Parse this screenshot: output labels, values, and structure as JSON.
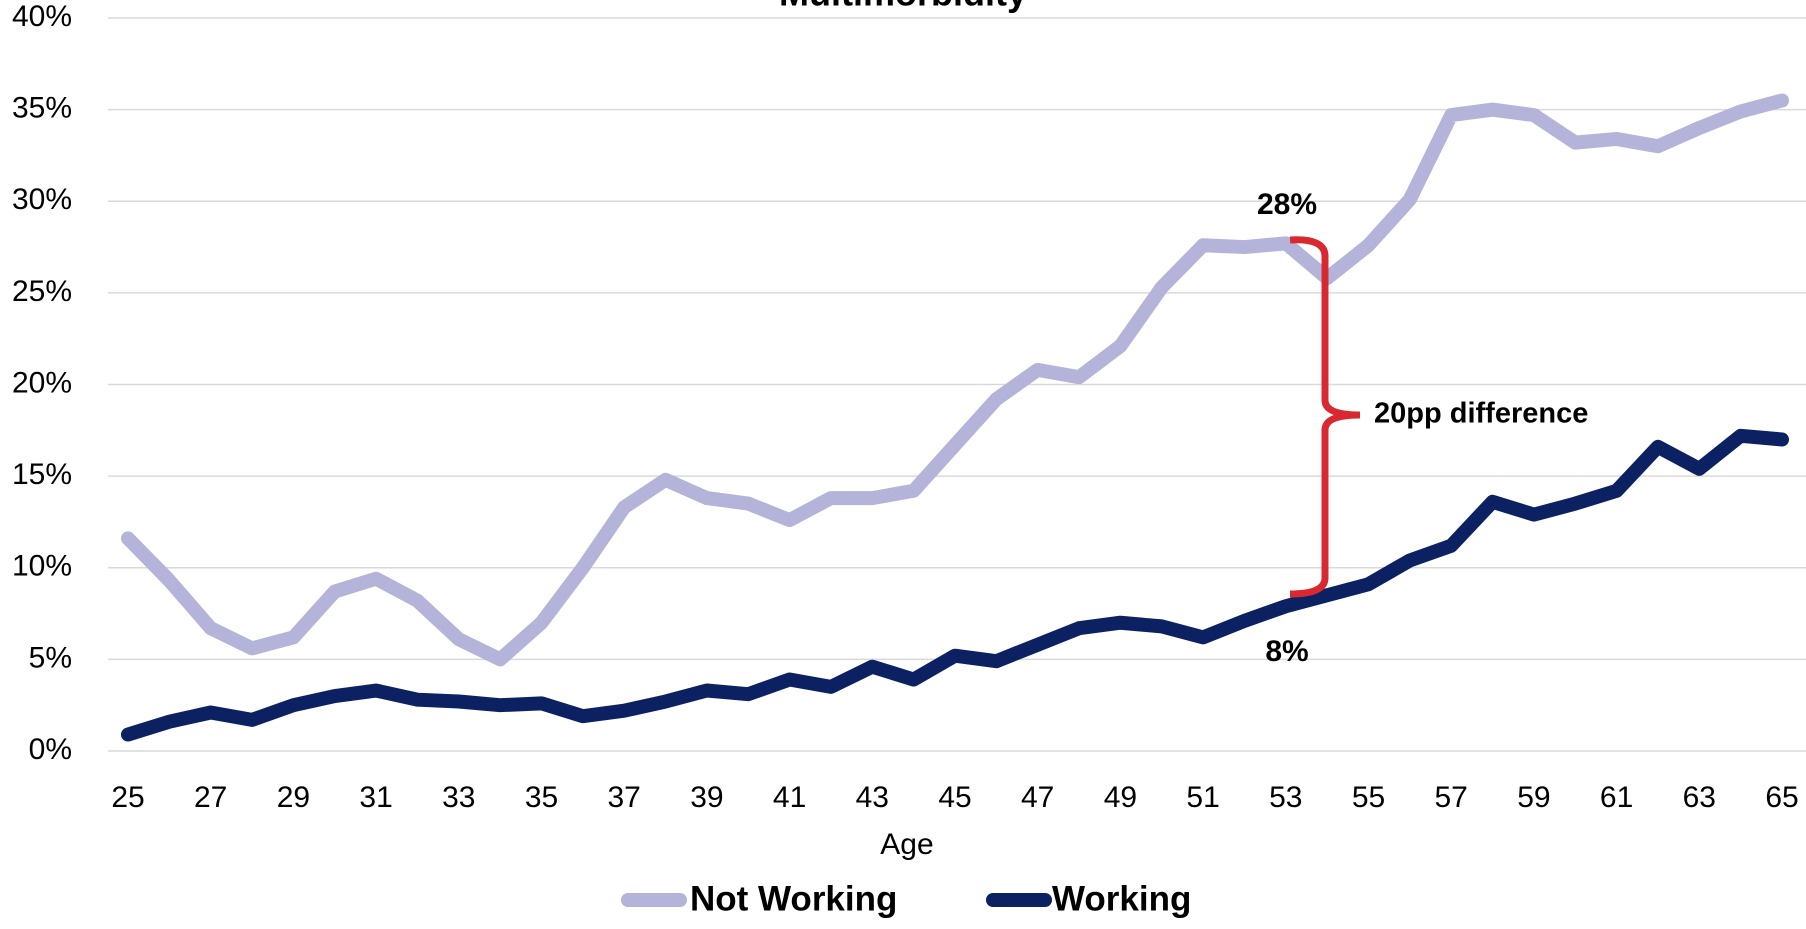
{
  "chart_data": {
    "type": "line",
    "title": "Multimorbidity",
    "x_label": "Age",
    "x": [
      25,
      26,
      27,
      28,
      29,
      30,
      31,
      32,
      33,
      34,
      35,
      36,
      37,
      38,
      39,
      40,
      41,
      42,
      43,
      44,
      45,
      46,
      47,
      48,
      49,
      50,
      51,
      52,
      53,
      54,
      55,
      56,
      57,
      58,
      59,
      60,
      61,
      62,
      63,
      64,
      65
    ],
    "series": [
      {
        "name": "Not Working",
        "color": "#b4b4da",
        "values": [
          11.6,
          9.3,
          6.7,
          5.6,
          6.2,
          8.7,
          9.4,
          8.2,
          6.1,
          5.0,
          7.0,
          10.0,
          13.3,
          14.8,
          13.8,
          13.5,
          12.6,
          13.8,
          13.8,
          14.2,
          16.7,
          19.2,
          20.8,
          20.4,
          22.1,
          25.3,
          27.6,
          27.5,
          27.7,
          25.8,
          27.6,
          30.1,
          34.7,
          35.0,
          34.7,
          33.2,
          33.4,
          33.0,
          34.0,
          34.9,
          35.5
        ]
      },
      {
        "name": "Working",
        "color": "#0b2161",
        "values": [
          0.9,
          1.6,
          2.1,
          1.7,
          2.5,
          3.0,
          3.3,
          2.8,
          2.7,
          2.5,
          2.6,
          1.9,
          2.2,
          2.7,
          3.3,
          3.1,
          3.9,
          3.5,
          4.6,
          3.9,
          5.2,
          4.9,
          5.8,
          6.7,
          7.0,
          6.8,
          6.2,
          7.1,
          7.9,
          8.5,
          9.1,
          10.4,
          11.2,
          13.6,
          12.9,
          13.5,
          14.2,
          16.6,
          15.4,
          17.2,
          17.0
        ]
      }
    ],
    "xlim": [
      25,
      65
    ],
    "xticks": [
      25,
      27,
      29,
      31,
      33,
      35,
      37,
      39,
      41,
      43,
      45,
      47,
      49,
      51,
      53,
      55,
      57,
      59,
      61,
      63,
      65
    ],
    "ylim": [
      0,
      40
    ],
    "yticks": [
      {
        "value": 0,
        "label": "0%"
      },
      {
        "value": 5,
        "label": "5%"
      },
      {
        "value": 10,
        "label": "10%"
      },
      {
        "value": 15,
        "label": "15%"
      },
      {
        "value": 20,
        "label": "20%"
      },
      {
        "value": 25,
        "label": "25%"
      },
      {
        "value": 30,
        "label": "30%"
      },
      {
        "value": 35,
        "label": "35%"
      },
      {
        "value": 40,
        "label": "40%"
      }
    ],
    "grid": true,
    "legend": "bottom",
    "annotations": [
      "28%",
      "8%",
      "20pp difference"
    ]
  }
}
